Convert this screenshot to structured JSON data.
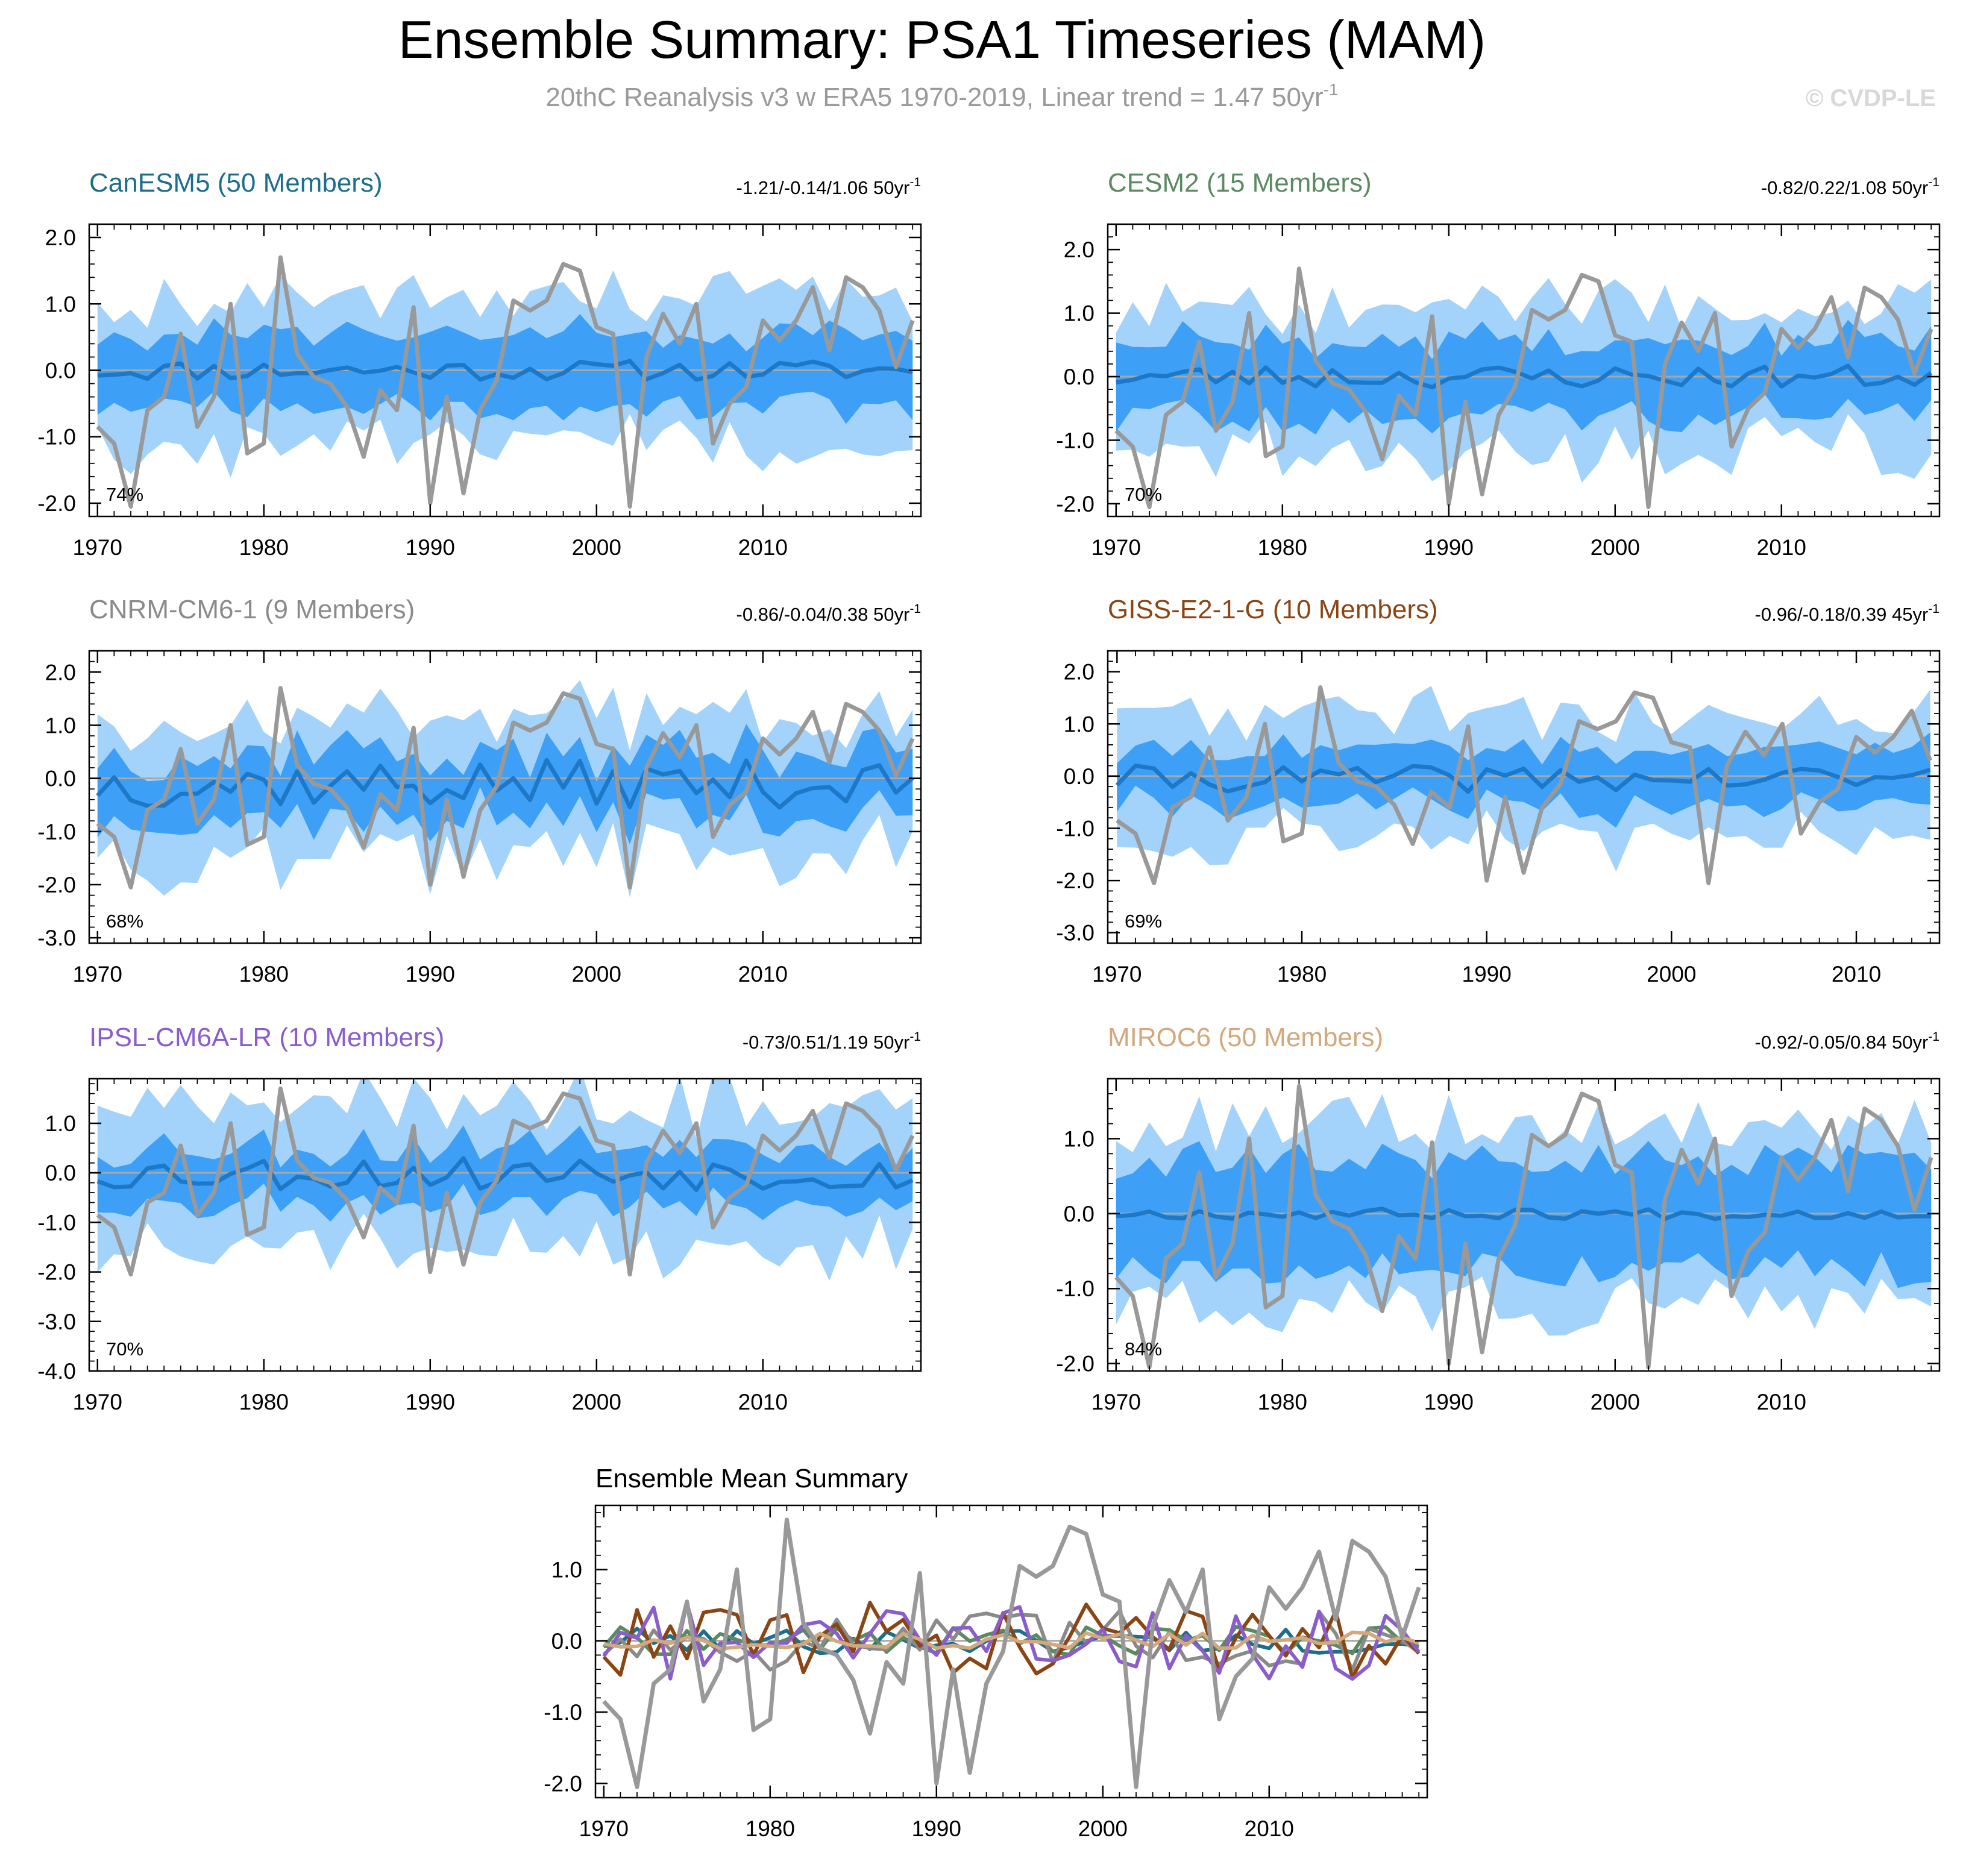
{
  "header": {
    "title": "Ensemble Summary: PSA1 Timeseries (MAM)",
    "subtitle": "20thC Reanalysis v3 w ERA5 1970-2019, Linear trend = 1.47 50yr",
    "subtitle_sup": "-1",
    "watermark": "© CVDP-LE"
  },
  "colors": {
    "outer_band": "#a3d3fa",
    "inner_band": "#3d9ff5",
    "ens_mean": "#1e78c8",
    "observed": "#999999",
    "zero_line": "#a8a8a8"
  },
  "chart_data": [
    {
      "type": "area",
      "name": "CanESM5 (50 Members)",
      "color": "#1d6e8c",
      "trend": "-1.21/-0.14/1.06 50yr",
      "trend_sup": "-1",
      "percent": "74%",
      "x": [
        1970,
        2019
      ],
      "xlim": [
        1969.5,
        2019.5
      ],
      "xticks": [
        1970,
        1980,
        1990,
        2000,
        2010
      ],
      "ylim": [
        -2.2,
        2.2
      ],
      "yticks": [
        -2.0,
        -1.0,
        0.0,
        1.0,
        2.0
      ],
      "seed": 11,
      "amp_outer": 1.05,
      "amp_inner": 0.5,
      "mean_amp": 0.15,
      "mean_bias": 0.0
    },
    {
      "type": "area",
      "name": "CESM2 (15 Members)",
      "color": "#5b8a62",
      "trend": "-0.82/0.22/1.08 50yr",
      "trend_sup": "-1",
      "percent": "70%",
      "x": [
        1970,
        2019
      ],
      "xlim": [
        1969.5,
        2019.5
      ],
      "xticks": [
        1970,
        1980,
        1990,
        2000,
        2010
      ],
      "ylim": [
        -2.2,
        2.4
      ],
      "yticks": [
        -2.0,
        -1.0,
        0.0,
        1.0,
        2.0
      ],
      "seed": 23,
      "amp_outer": 1.05,
      "amp_inner": 0.55,
      "mean_amp": 0.18,
      "mean_bias": 0.0
    },
    {
      "type": "area",
      "name": "CNRM-CM6-1 (9 Members)",
      "color": "#8a8a8a",
      "trend": "-0.86/-0.04/0.38 50yr",
      "trend_sup": "-1",
      "percent": "68%",
      "x": [
        1970,
        2019
      ],
      "xlim": [
        1969.5,
        2019.5
      ],
      "xticks": [
        1970,
        1980,
        1990,
        2000,
        2010
      ],
      "ylim": [
        -3.1,
        2.4
      ],
      "yticks": [
        -3.0,
        -2.0,
        -1.0,
        0.0,
        1.0,
        2.0
      ],
      "seed": 37,
      "amp_outer": 1.2,
      "amp_inner": 0.55,
      "mean_amp": 0.45,
      "mean_bias": -0.1
    },
    {
      "type": "area",
      "name": "GISS-E2-1-G (10 Members)",
      "color": "#8b4513",
      "trend": "-0.96/-0.18/0.39 45yr",
      "trend_sup": "-1",
      "percent": "69%",
      "x": [
        1970,
        2014
      ],
      "xlim": [
        1969.5,
        2014.5
      ],
      "xticks": [
        1970,
        1980,
        1990,
        2000,
        2010
      ],
      "ylim": [
        -3.2,
        2.4
      ],
      "yticks": [
        -3.0,
        -2.0,
        -1.0,
        0.0,
        1.0,
        2.0
      ],
      "seed": 41,
      "amp_outer": 1.1,
      "amp_inner": 0.5,
      "mean_amp": 0.25,
      "mean_bias": -0.05
    },
    {
      "type": "area",
      "name": "IPSL-CM6A-LR (10 Members)",
      "color": "#8a5ccc",
      "trend": "-0.73/0.51/1.19 50yr",
      "trend_sup": "-1",
      "percent": "70%",
      "x": [
        1970,
        2019
      ],
      "xlim": [
        1969.5,
        2019.5
      ],
      "xticks": [
        1970,
        1980,
        1990,
        2000,
        2010
      ],
      "ylim": [
        -4.0,
        1.9
      ],
      "yticks": [
        -4.0,
        -3.0,
        -2.0,
        -1.0,
        0.0,
        1.0
      ],
      "seed": 53,
      "amp_outer": 1.35,
      "amp_inner": 0.5,
      "mean_amp": 0.35,
      "mean_bias": 0.0
    },
    {
      "type": "area",
      "name": "MIROC6 (50 Members)",
      "color": "#d2a87c",
      "trend": "-0.92/-0.05/0.84 50yr",
      "trend_sup": "-1",
      "percent": "84%",
      "x": [
        1970,
        2019
      ],
      "xlim": [
        1969.5,
        2019.5
      ],
      "xticks": [
        1970,
        1980,
        1990,
        2000,
        2010
      ],
      "ylim": [
        -2.1,
        1.8
      ],
      "yticks": [
        -2.0,
        -1.0,
        0.0,
        1.0
      ],
      "seed": 67,
      "amp_outer": 1.1,
      "amp_inner": 0.65,
      "mean_amp": 0.07,
      "mean_bias": 0.0
    },
    {
      "type": "line",
      "name": "Ensemble Mean Summary",
      "x": [
        1970,
        2019
      ],
      "xlim": [
        1969.5,
        2019.5
      ],
      "xticks": [
        1970,
        1980,
        1990,
        2000,
        2010
      ],
      "ylim": [
        -2.2,
        1.9
      ],
      "yticks": [
        -2.0,
        -1.0,
        0.0,
        1.0
      ],
      "series_colors": [
        "#1d6e8c",
        "#5b8a62",
        "#8a8a8a",
        "#8b4513",
        "#8a5ccc",
        "#d2a87c"
      ],
      "observed": [
        -0.85,
        -1.1,
        -2.05,
        -0.6,
        -0.4,
        0.55,
        -0.85,
        -0.4,
        1.0,
        -1.25,
        -1.1,
        1.7,
        0.25,
        -0.1,
        -0.2,
        -0.55,
        -1.3,
        -0.3,
        -0.6,
        0.95,
        -2.0,
        -0.4,
        -1.85,
        -0.6,
        -0.15,
        1.05,
        0.9,
        1.05,
        1.6,
        1.5,
        0.65,
        0.55,
        -2.05,
        0.2,
        0.85,
        0.4,
        1.0,
        -1.1,
        -0.5,
        -0.25,
        0.75,
        0.45,
        0.75,
        1.25,
        0.3,
        1.4,
        1.25,
        0.9,
        0.05,
        0.75
      ]
    }
  ]
}
